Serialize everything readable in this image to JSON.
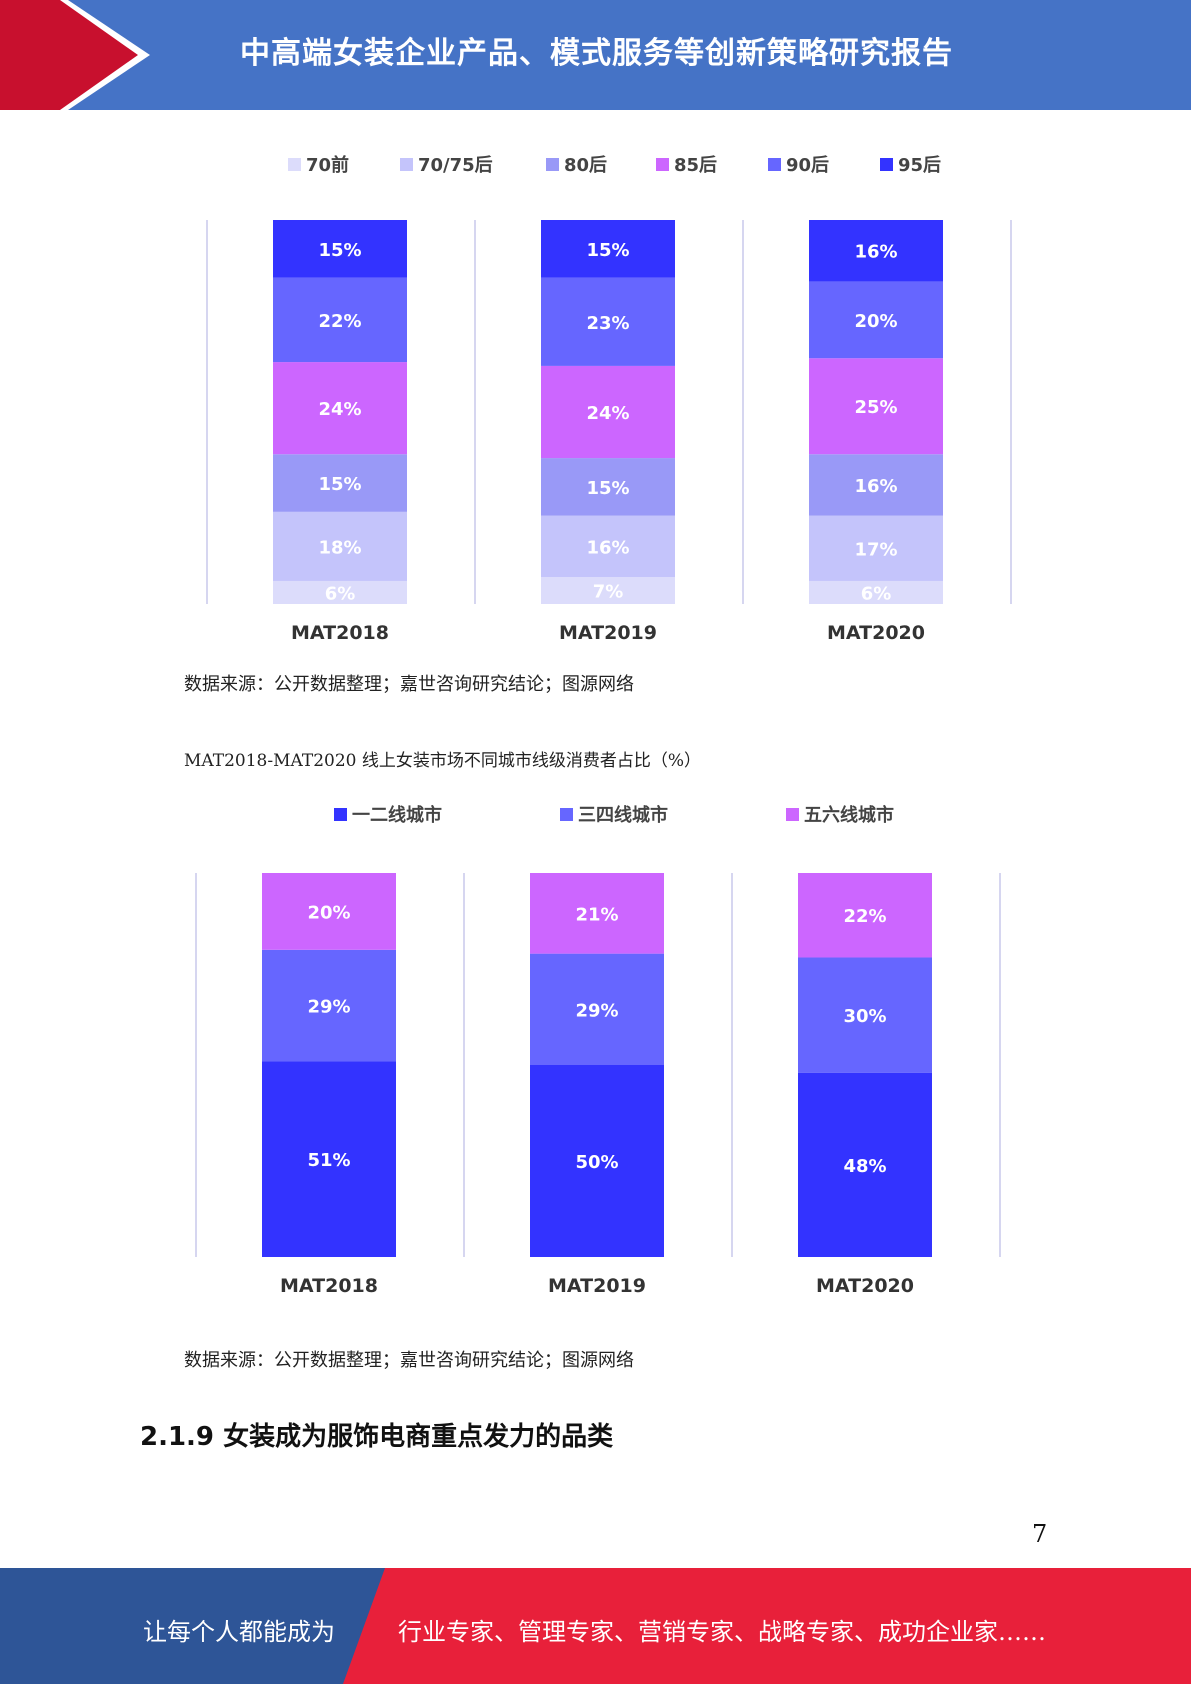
{
  "header": {
    "title": "中高端女装企业产品、模式服务等创新策略研究报告"
  },
  "source_note_1": "数据来源：公开数据整理；嘉世咨询研究结论；图源网络",
  "chart2_heading": "MAT2018-MAT2020 线上女装市场不同城市线级消费者占比（%）",
  "source_note_2": "数据来源：公开数据整理；嘉世咨询研究结论；图源网络",
  "section_heading": "2.1.9 女装成为服饰电商重点发力的品类",
  "page_number": "7",
  "footer": {
    "left_text": "让每个人都能成为",
    "right_text": "行业专家、管理专家、营销专家、战略专家、成功企业家……"
  },
  "colors": {
    "header_blue": "#4573c6",
    "header_red": "#c8102e",
    "footer_blue": "#2e5597",
    "footer_red": "#e8203a"
  },
  "chart_data": [
    {
      "type": "bar",
      "stacked": true,
      "title": "",
      "categories": [
        "MAT2018",
        "MAT2019",
        "MAT2020"
      ],
      "legend_position": "top",
      "series": [
        {
          "name": "70前",
          "color": "#dcdcfb",
          "values": [
            6,
            7,
            6
          ]
        },
        {
          "name": "70/75后",
          "color": "#c4c4fb",
          "values": [
            18,
            16,
            17
          ]
        },
        {
          "name": "80后",
          "color": "#9999f7",
          "values": [
            15,
            15,
            16
          ]
        },
        {
          "name": "85后",
          "color": "#cc66ff",
          "values": [
            24,
            24,
            25
          ]
        },
        {
          "name": "90后",
          "color": "#6666ff",
          "values": [
            22,
            23,
            20
          ]
        },
        {
          "name": "95后",
          "color": "#3333ff",
          "values": [
            15,
            15,
            16
          ]
        }
      ],
      "value_labels": [
        [
          "6%",
          "18%",
          "15%",
          "24%",
          "22%",
          "15%"
        ],
        [
          "7%",
          "16%",
          "15%",
          "24%",
          "23%",
          "15%"
        ],
        [
          "6%",
          "17%",
          "16%",
          "25%",
          "20%",
          "16%"
        ]
      ]
    },
    {
      "type": "bar",
      "stacked": true,
      "title": "",
      "categories": [
        "MAT2018",
        "MAT2019",
        "MAT2020"
      ],
      "legend_position": "top",
      "series": [
        {
          "name": "一二线城市",
          "color": "#3333ff",
          "values": [
            51,
            50,
            48
          ]
        },
        {
          "name": "三四线城市",
          "color": "#6666ff",
          "values": [
            29,
            29,
            30
          ]
        },
        {
          "name": "五六线城市",
          "color": "#cc66ff",
          "values": [
            20,
            21,
            22
          ]
        }
      ],
      "value_labels": [
        [
          "51%",
          "29%",
          "20%"
        ],
        [
          "50%",
          "29%",
          "21%"
        ],
        [
          "48%",
          "30%",
          "22%"
        ]
      ]
    }
  ]
}
